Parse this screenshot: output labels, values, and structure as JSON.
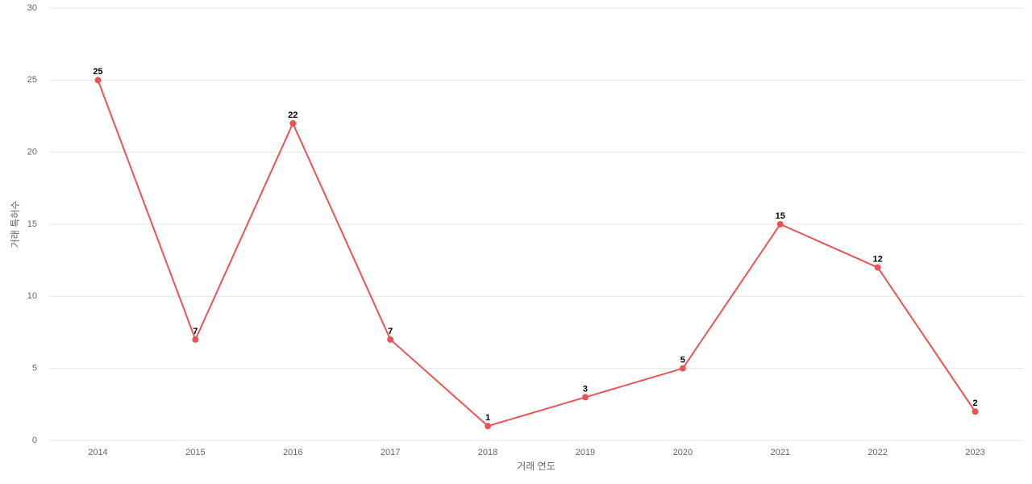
{
  "chart_data": {
    "type": "line",
    "x_label": "거래 연도",
    "y_label": "거래 특허수",
    "categories": [
      "2014",
      "2015",
      "2016",
      "2017",
      "2018",
      "2019",
      "2020",
      "2021",
      "2022",
      "2023"
    ],
    "values": [
      25,
      7,
      22,
      7,
      1,
      3,
      5,
      15,
      12,
      2
    ],
    "color": "#ea5455",
    "ylim": [
      0,
      30
    ],
    "yticks": [
      0,
      5,
      10,
      15,
      20,
      25,
      30
    ],
    "grid": true,
    "data_labels": true
  }
}
